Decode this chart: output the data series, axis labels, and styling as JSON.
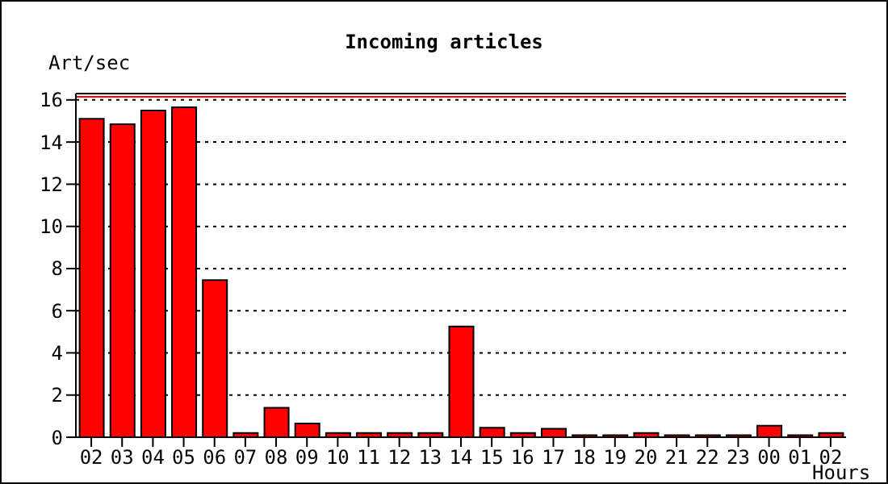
{
  "chart_data": {
    "type": "bar",
    "title": "Incoming articles",
    "ylabel": "Art/sec",
    "xlabel": "Hours",
    "categories": [
      "02",
      "03",
      "04",
      "05",
      "06",
      "07",
      "08",
      "09",
      "10",
      "11",
      "12",
      "13",
      "14",
      "15",
      "16",
      "17",
      "18",
      "19",
      "20",
      "21",
      "22",
      "23",
      "00",
      "01",
      "02"
    ],
    "values": [
      15.1,
      14.85,
      15.5,
      15.65,
      7.45,
      0.2,
      1.4,
      0.65,
      0.2,
      0.2,
      0.2,
      0.2,
      5.25,
      0.45,
      0.2,
      0.4,
      0.1,
      0.1,
      0.2,
      0.1,
      0.1,
      0.1,
      0.55,
      0.1,
      0.2
    ],
    "color": "#ff0000",
    "ylim": [
      0,
      16.3
    ],
    "yticks": [
      0,
      2,
      4,
      6,
      8,
      10,
      12,
      14,
      16
    ],
    "grid": "y",
    "ref_lines": [
      {
        "axis": "y",
        "value": 16.15,
        "color": "#ff0000"
      }
    ],
    "legend": false
  }
}
